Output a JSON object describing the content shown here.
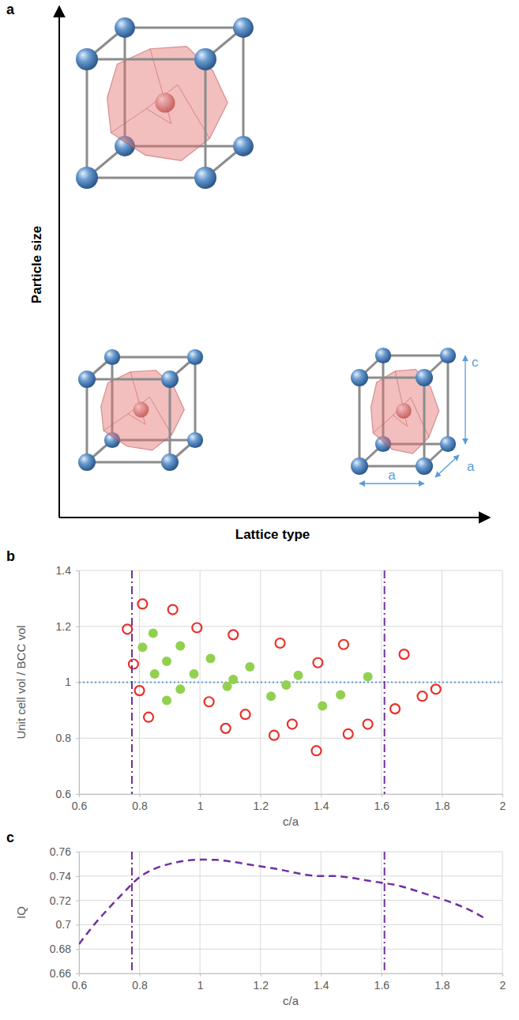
{
  "diagram": {
    "label": "a",
    "y_axis_label": "Particle size",
    "x_axis_label": "Lattice type",
    "cell_labels": [
      "c",
      "a",
      "a"
    ]
  },
  "chart_data": [
    {
      "type": "scatter",
      "panel_label": "b",
      "x_label": "c/a",
      "y_label": "Unit cell vol / BCC vol",
      "xlim": [
        0.6,
        2
      ],
      "xticks": [
        0.6,
        0.8,
        1,
        1.2,
        1.4,
        1.6,
        1.8,
        2
      ],
      "ylim": [
        0.6,
        1.4
      ],
      "yticks": [
        0.6,
        0.8,
        1,
        1.2,
        1.4
      ],
      "grid": true,
      "hlines": [
        1
      ],
      "vlines": [
        0.775,
        1.61
      ],
      "series": [
        {
          "color": "#e8302a",
          "marker": "open-circle",
          "x": [
            0.76,
            0.78,
            0.81,
            0.8,
            0.83,
            0.91,
            0.99,
            1.03,
            1.085,
            1.11,
            1.15,
            1.245,
            1.265,
            1.305,
            1.385,
            1.39,
            1.475,
            1.49,
            1.555,
            1.645,
            1.675,
            1.735,
            1.78
          ],
          "values": [
            1.19,
            1.065,
            1.28,
            0.97,
            0.875,
            1.26,
            1.195,
            0.93,
            0.835,
            1.17,
            0.885,
            0.81,
            1.14,
            0.85,
            0.755,
            1.07,
            1.135,
            0.815,
            0.85,
            0.905,
            1.1,
            0.95,
            0.975
          ]
        },
        {
          "color": "#92d050",
          "marker": "circle",
          "x": [
            0.81,
            0.845,
            0.85,
            0.89,
            0.89,
            0.935,
            0.935,
            0.98,
            1.035,
            1.09,
            1.11,
            1.165,
            1.235,
            1.285,
            1.325,
            1.405,
            1.465,
            1.555
          ],
          "values": [
            1.125,
            1.175,
            1.03,
            1.075,
            0.935,
            1.13,
            0.975,
            1.03,
            1.085,
            0.985,
            1.01,
            1.055,
            0.95,
            0.99,
            1.025,
            0.915,
            0.955,
            1.02
          ]
        }
      ]
    },
    {
      "type": "line",
      "panel_label": "c",
      "x_label": "c/a",
      "y_label": "IQ",
      "xlim": [
        0.6,
        2
      ],
      "xticks": [
        0.6,
        0.8,
        1,
        1.2,
        1.4,
        1.6,
        1.8,
        2
      ],
      "ylim": [
        0.66,
        0.76
      ],
      "yticks": [
        0.66,
        0.68,
        0.7,
        0.72,
        0.74,
        0.76
      ],
      "grid": true,
      "vlines": [
        0.775,
        1.61
      ],
      "series": [
        {
          "color": "#7030a0",
          "line_style": "dashed",
          "x": [
            0.6,
            0.65,
            0.7,
            0.75,
            0.8,
            0.85,
            0.9,
            0.95,
            1.0,
            1.05,
            1.1,
            1.15,
            1.2,
            1.25,
            1.3,
            1.35,
            1.4,
            1.45,
            1.5,
            1.55,
            1.6,
            1.65,
            1.7,
            1.75,
            1.8,
            1.85,
            1.9,
            1.95
          ],
          "values": [
            0.684,
            0.7,
            0.714,
            0.727,
            0.739,
            0.746,
            0.75,
            0.7525,
            0.7535,
            0.7533,
            0.752,
            0.75,
            0.748,
            0.746,
            0.7435,
            0.741,
            0.74,
            0.74,
            0.7385,
            0.7365,
            0.7345,
            0.7325,
            0.729,
            0.725,
            0.721,
            0.7165,
            0.711,
            0.704
          ]
        }
      ]
    }
  ]
}
